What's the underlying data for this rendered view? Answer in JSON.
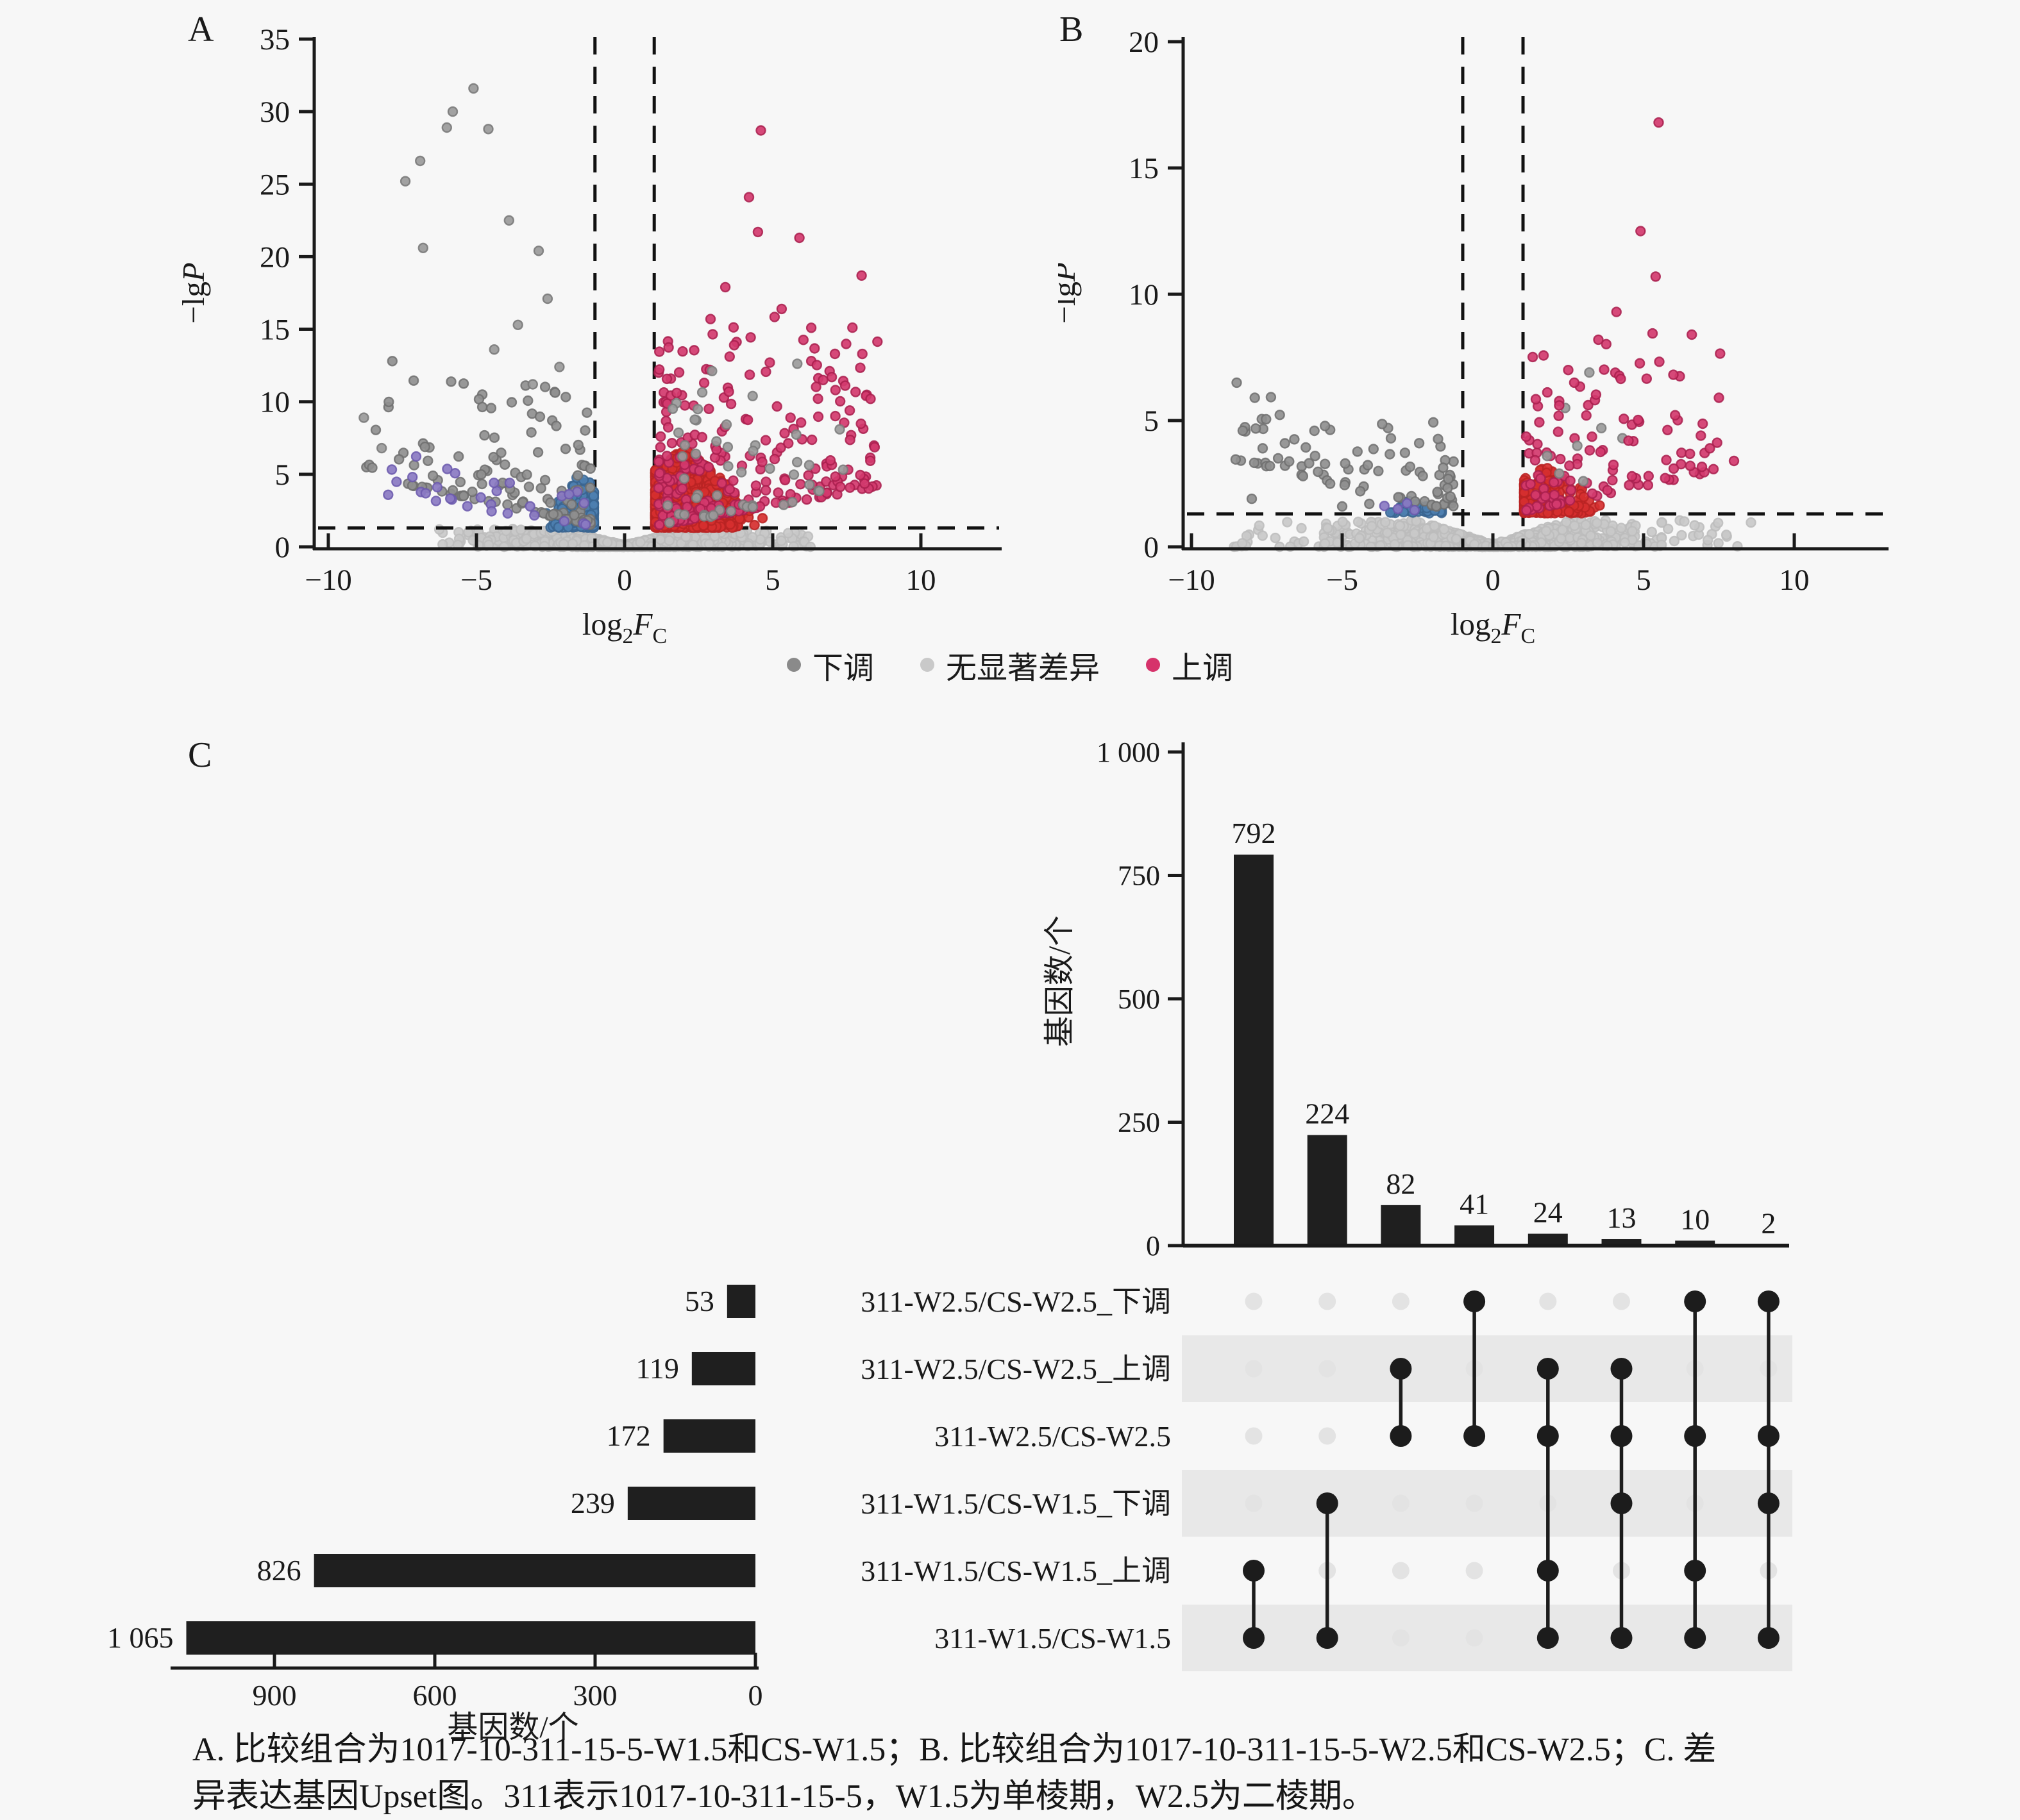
{
  "figure": {
    "background": "#f7f7f7"
  },
  "panels": {
    "a": {
      "letter": "A"
    },
    "b": {
      "letter": "B"
    },
    "c": {
      "letter": "C"
    }
  },
  "legend": {
    "items": [
      {
        "name": "down",
        "label": "下调",
        "color": "#8a8a8a"
      },
      {
        "name": "nonsig",
        "label": "无显著差异",
        "color": "#c9c9c9"
      },
      {
        "name": "up",
        "label": "上调",
        "color": "#d6336b"
      }
    ]
  },
  "caption": {
    "line1": "A. 比较组合为1017-10-311-15-5-W1.5和CS-W1.5；B. 比较组合为1017-10-311-15-5-W2.5和CS-W2.5；C. 差",
    "line2": "异表达基因Upset图。311表示1017-10-311-15-5，W1.5为单棱期，W2.5为二棱期。"
  },
  "chart_data": [
    {
      "type": "scatter",
      "id": "volcano-a",
      "panel": "A",
      "xlabel_parts": [
        {
          "text": "log"
        },
        {
          "text": "2",
          "sub": true
        },
        {
          "text": "F",
          "italic": true
        },
        {
          "text": "C",
          "sub": true
        }
      ],
      "ylabel_parts": [
        {
          "text": "−lg"
        },
        {
          "text": "P",
          "italic": true
        }
      ],
      "xlim": [
        -10.8,
        10.8
      ],
      "ylim": [
        0,
        35
      ],
      "xticks": {
        "values": [
          -10,
          -5,
          0,
          5,
          10
        ],
        "labels": [
          "−10",
          "−5",
          "0",
          "5",
          "10"
        ]
      },
      "yticks": {
        "values": [
          0,
          5,
          10,
          15,
          20,
          25,
          30,
          35
        ],
        "labels": [
          "0",
          "5",
          "10",
          "15",
          "20",
          "25",
          "30",
          "35"
        ]
      },
      "thresholds": {
        "vlines": [
          -1,
          1
        ],
        "hline": 1.3
      },
      "series_legend": [
        "下调",
        "无显著差异",
        "上调"
      ],
      "clusters": [
        {
          "name": "nonsignificant-band",
          "role": "band",
          "color": "#c9c9c9",
          "rim": "#bcbcbc",
          "seed": 11,
          "n": 1400,
          "sigma": 1.9,
          "xmax": 5.8,
          "tailFrac": 0.1,
          "tailXmax": 6.3,
          "base": 0.12,
          "slope": 0.5,
          "cap": 1.22,
          "ypow": 1.5
        },
        {
          "name": "down-blue-cluster",
          "role": "wedge",
          "color": "#4d7fb0",
          "rim": "#39648f",
          "seed": 21,
          "n": 230,
          "peak": -1.5,
          "spread": 0.5,
          "xmin": -2.9,
          "xmax": -1.04,
          "apex": 3.9,
          "slope": 2.4,
          "ypow": 1.9
        },
        {
          "name": "up-red-cluster",
          "role": "wedge",
          "color": "#d62f2f",
          "rim": "#b82323",
          "seed": 31,
          "n": 850,
          "peak": 2.0,
          "spread": 0.85,
          "xmin": 1.04,
          "xmax": 4.9,
          "apex": 5.6,
          "slope": 1.7,
          "ypow": 1.9
        },
        {
          "name": "up-rose-scatter",
          "role": "spray",
          "color": "#d23a6e",
          "rim": "#a91f4e",
          "seed": 41,
          "n": 260,
          "xmin": 1.15,
          "xmax": 8.6,
          "xpow": 1.7,
          "ymin": 1.45,
          "ymax": 14.5,
          "ypow": 2.6,
          "lift": 0.35
        },
        {
          "name": "down-gray-scatter",
          "role": "spray",
          "color": "#8f8f8f",
          "rim": "#6f6f6f",
          "seed": 51,
          "n": 130,
          "xmin": -1.15,
          "xmax": -8.8,
          "xpow": 1.6,
          "ymin": 1.45,
          "ymax": 10.5,
          "ypow": 2.4,
          "lift": 0.45
        },
        {
          "name": "down-purple-scatter",
          "role": "spray",
          "color": "#8a7ac2",
          "rim": "#6b59ad",
          "seed": 61,
          "n": 30,
          "xmin": -1.3,
          "xmax": -8.3,
          "xpow": 1.4,
          "ymin": 1.4,
          "ymax": 4.5,
          "ypow": 2.2,
          "lift": 0.3
        },
        {
          "name": "up-gray-scatter",
          "role": "spray",
          "color": "#9a9a9a",
          "rim": "#7a7a7a",
          "seed": 71,
          "n": 50,
          "xmin": 1.4,
          "xmax": 7.8,
          "xpow": 1.5,
          "ymin": 1.5,
          "ymax": 12,
          "ypow": 2.2,
          "lift": 0.3
        },
        {
          "name": "down-gray-outliers",
          "role": "list",
          "color": "#9a9a9a",
          "rim": "#777777",
          "pts": [
            [
              -5.1,
              31.6
            ],
            [
              -5.8,
              30.0
            ],
            [
              -6.0,
              28.9
            ],
            [
              -4.6,
              28.8
            ],
            [
              -6.9,
              26.6
            ],
            [
              -7.4,
              25.2
            ],
            [
              -3.9,
              22.5
            ],
            [
              -6.8,
              20.6
            ],
            [
              -2.9,
              20.4
            ],
            [
              -2.6,
              17.1
            ],
            [
              -3.6,
              15.3
            ],
            [
              -4.4,
              13.6
            ],
            [
              -8.8,
              8.9
            ],
            [
              -8.2,
              6.8
            ],
            [
              -2.2,
              12.4
            ],
            [
              -3.1,
              11.2
            ]
          ]
        },
        {
          "name": "up-rose-outliers",
          "role": "list",
          "color": "#d23a6e",
          "rim": "#a91f4e",
          "pts": [
            [
              4.6,
              28.7
            ],
            [
              4.2,
              24.1
            ],
            [
              4.5,
              21.7
            ],
            [
              5.9,
              21.3
            ],
            [
              8.0,
              18.7
            ],
            [
              3.4,
              17.9
            ],
            [
              5.3,
              16.4
            ],
            [
              6.3,
              15.1
            ],
            [
              7.1,
              13.3
            ],
            [
              4.9,
              12.7
            ],
            [
              6.7,
              11.5
            ],
            [
              8.3,
              10.2
            ],
            [
              2.9,
              15.7
            ],
            [
              3.7,
              13.9
            ],
            [
              7.6,
              9.4
            ],
            [
              5.6,
              8.9
            ]
          ]
        }
      ]
    },
    {
      "type": "scatter",
      "id": "volcano-b",
      "panel": "B",
      "xlabel_parts": [
        {
          "text": "log"
        },
        {
          "text": "2",
          "sub": true
        },
        {
          "text": "F",
          "italic": true
        },
        {
          "text": "C",
          "sub": true
        }
      ],
      "ylabel_parts": [
        {
          "text": "−lg"
        },
        {
          "text": "P",
          "italic": true
        }
      ],
      "xlim": [
        -10.8,
        10.8
      ],
      "ylim": [
        0,
        20
      ],
      "xticks": {
        "values": [
          -10,
          -5,
          0,
          5,
          10
        ],
        "labels": [
          "−10",
          "−5",
          "0",
          "5",
          "10"
        ]
      },
      "yticks": {
        "values": [
          0,
          5,
          10,
          15,
          20
        ],
        "labels": [
          "0",
          "5",
          "10",
          "15",
          "20"
        ]
      },
      "thresholds": {
        "vlines": [
          -1,
          1
        ],
        "hline": 1.3
      },
      "series_legend": [
        "下调",
        "无显著差异",
        "上调"
      ],
      "clusters": [
        {
          "name": "nonsignificant-band",
          "role": "band",
          "color": "#c9c9c9",
          "rim": "#bcbcbc",
          "seed": 12,
          "n": 1000,
          "sigma": 2.0,
          "xmax": 5.6,
          "tailFrac": 0.14,
          "tailXmax": 8.6,
          "base": 0.1,
          "slope": 0.38,
          "cap": 1.05,
          "ypow": 1.5
        },
        {
          "name": "down-blue-cluster",
          "role": "wedge",
          "color": "#4d7fb0",
          "rim": "#39648f",
          "seed": 22,
          "n": 40,
          "peak": -2.5,
          "spread": 0.4,
          "xmin": -3.4,
          "xmax": -1.7,
          "apex": 0.75,
          "slope": 0.6,
          "ypow": 1.6
        },
        {
          "name": "up-red-cluster",
          "role": "wedge",
          "color": "#d62f2f",
          "rim": "#b82323",
          "seed": 32,
          "n": 230,
          "peak": 1.7,
          "spread": 0.7,
          "xmin": 1.04,
          "xmax": 3.8,
          "apex": 1.9,
          "slope": 0.75,
          "ypow": 1.7
        },
        {
          "name": "up-rose-scatter",
          "role": "spray",
          "color": "#d23a6e",
          "rim": "#a91f4e",
          "seed": 42,
          "n": 110,
          "xmin": 1.1,
          "xmax": 7.6,
          "xpow": 1.6,
          "ymin": 1.4,
          "ymax": 7.5,
          "ypow": 2.4,
          "lift": 0.25
        },
        {
          "name": "down-gray-scatter",
          "role": "spray",
          "color": "#8f8f8f",
          "rim": "#6f6f6f",
          "seed": 52,
          "n": 80,
          "xmin": -1.3,
          "xmax": -8.6,
          "xpow": 1.5,
          "ymin": 1.35,
          "ymax": 4.8,
          "ypow": 2.2,
          "lift": 0.28
        },
        {
          "name": "down-purple-dots",
          "role": "list",
          "color": "#8a7ac2",
          "rim": "#6b59ad",
          "pts": [
            [
              -3.6,
              1.62
            ],
            [
              -3.15,
              1.5
            ],
            [
              -2.85,
              1.72
            ],
            [
              -2.6,
              1.45
            ]
          ]
        },
        {
          "name": "up-gray-dots",
          "role": "list",
          "color": "#9a9a9a",
          "rim": "#7a7a7a",
          "pts": [
            [
              3.2,
              6.9
            ],
            [
              2.4,
              5.5
            ],
            [
              3.6,
              4.7
            ],
            [
              2.8,
              4.0
            ],
            [
              4.3,
              4.3
            ],
            [
              1.8,
              3.6
            ],
            [
              2.2,
              2.9
            ],
            [
              3.0,
              2.6
            ]
          ]
        },
        {
          "name": "up-rose-outliers",
          "role": "list",
          "color": "#d23a6e",
          "rim": "#a91f4e",
          "pts": [
            [
              5.5,
              16.8
            ],
            [
              4.9,
              12.5
            ],
            [
              5.4,
              10.7
            ],
            [
              4.1,
              9.3
            ],
            [
              6.6,
              8.4
            ],
            [
              3.5,
              8.2
            ],
            [
              2.5,
              7.0
            ],
            [
              2.7,
              6.5
            ],
            [
              7.5,
              5.9
            ],
            [
              2.2,
              5.6
            ],
            [
              3.1,
              5.2
            ],
            [
              6.9,
              4.4
            ],
            [
              7.2,
              3.9
            ],
            [
              4.5,
              4.2
            ],
            [
              8.0,
              3.4
            ],
            [
              6.0,
              3.1
            ]
          ]
        },
        {
          "name": "down-gray-outliers",
          "role": "list",
          "color": "#8f8f8f",
          "rim": "#6f6f6f",
          "pts": [
            [
              -8.5,
              6.5
            ],
            [
              -7.9,
              5.9
            ],
            [
              -8.3,
              4.6
            ],
            [
              -6.9,
              4.1
            ],
            [
              -5.9,
              3.6
            ],
            [
              -7.4,
              3.2
            ],
            [
              -4.9,
              3.3
            ],
            [
              -6.3,
              2.8
            ],
            [
              -5.4,
              2.5
            ],
            [
              -8.0,
              1.9
            ],
            [
              -4.4,
              2.2
            ],
            [
              -3.8,
              3.0
            ],
            [
              -4.1,
              1.7
            ],
            [
              -5.0,
              1.6
            ]
          ]
        }
      ]
    },
    {
      "type": "bar",
      "subtype": "upset",
      "id": "upset-c",
      "intersection_axis": {
        "label": "基因数/个",
        "ticks": [
          0,
          250,
          500,
          750,
          1000
        ],
        "tick_labels": [
          "0",
          "250",
          "500",
          "750",
          "1 000"
        ]
      },
      "intersections": [
        {
          "value": 792,
          "label": "792",
          "sets": [
            4,
            5
          ]
        },
        {
          "value": 224,
          "label": "224",
          "sets": [
            3,
            5
          ]
        },
        {
          "value": 82,
          "label": "82",
          "sets": [
            1,
            2
          ]
        },
        {
          "value": 41,
          "label": "41",
          "sets": [
            0,
            2
          ]
        },
        {
          "value": 24,
          "label": "24",
          "sets": [
            1,
            2,
            4,
            5
          ]
        },
        {
          "value": 13,
          "label": "13",
          "sets": [
            1,
            2,
            3,
            5
          ]
        },
        {
          "value": 10,
          "label": "10",
          "sets": [
            0,
            2,
            4,
            5
          ]
        },
        {
          "value": 2,
          "label": "2",
          "sets": [
            0,
            2,
            3,
            5
          ]
        }
      ],
      "sets": [
        {
          "label": "311-W2.5/CS-W2.5_下调",
          "size": 53,
          "size_label": "53"
        },
        {
          "label": "311-W2.5/CS-W2.5_上调",
          "size": 119,
          "size_label": "119"
        },
        {
          "label": "311-W2.5/CS-W2.5",
          "size": 172,
          "size_label": "172"
        },
        {
          "label": "311-W1.5/CS-W1.5_下调",
          "size": 239,
          "size_label": "239"
        },
        {
          "label": "311-W1.5/CS-W1.5_上调",
          "size": 826,
          "size_label": "826"
        },
        {
          "label": "311-W1.5/CS-W1.5",
          "size": 1065,
          "size_label": "1 065"
        }
      ],
      "set_axis": {
        "label": "基因数/个",
        "ticks": [
          900,
          600,
          300,
          0
        ],
        "tick_labels": [
          "900",
          "600",
          "300",
          "0"
        ]
      },
      "striped_rows": [
        1,
        3,
        5
      ],
      "colors": {
        "bar": "#1f1f1f",
        "dot_filled": "#1c1c1c",
        "dot_empty": "#e3e3e3",
        "band": "#e8e8e8"
      }
    }
  ]
}
